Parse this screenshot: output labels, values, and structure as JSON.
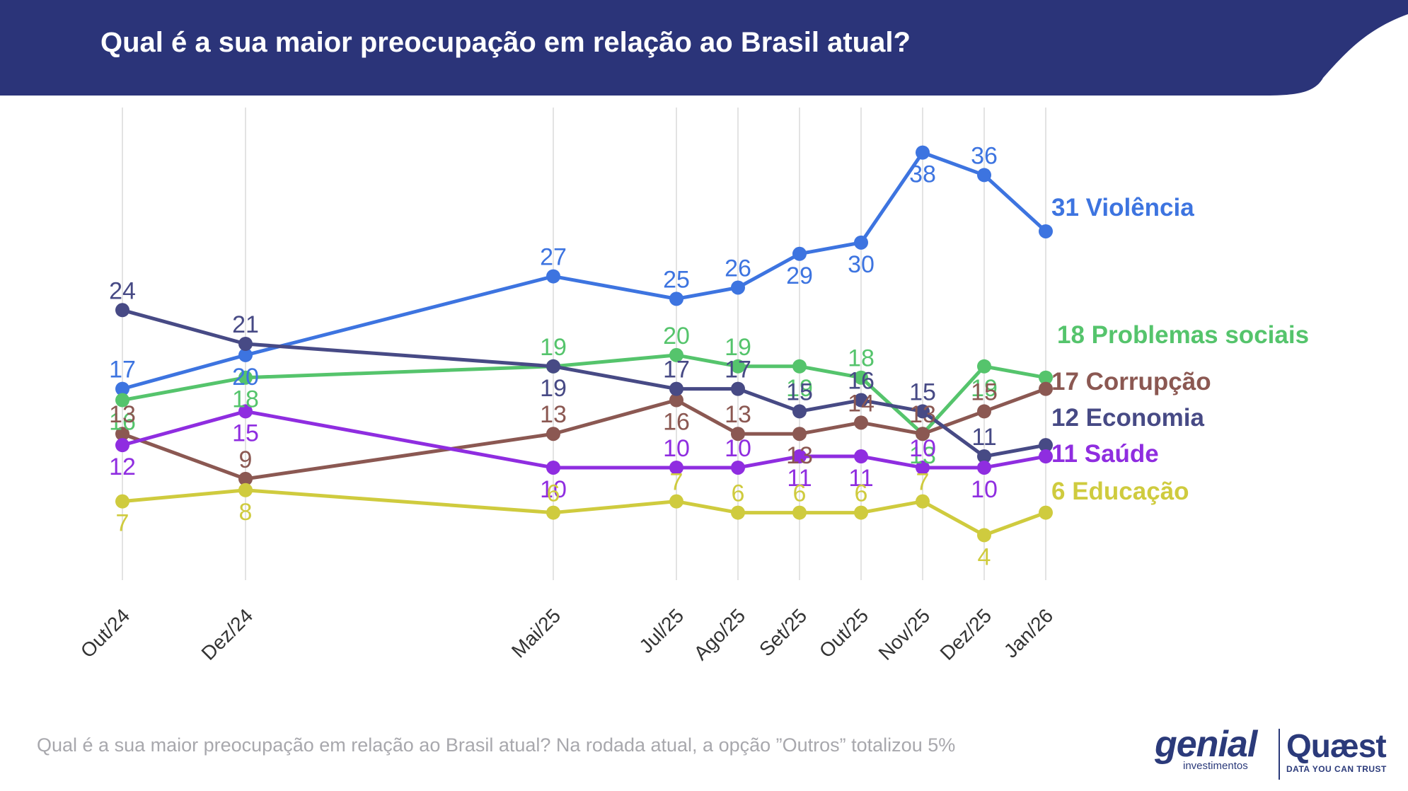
{
  "header": {
    "title": "Qual é a sua maior preocupação em relação ao Brasil atual?",
    "background_color": "#2b3479"
  },
  "footer": {
    "note": "Qual é a sua maior preocupação em relação ao Brasil atual? Na rodada atual, a opção ”Outros” totalizou 5%"
  },
  "logos": {
    "genial": {
      "name": "genial",
      "sub": "investimentos"
    },
    "quaest": {
      "name": "Quæst",
      "sub": "DATA YOU CAN TRUST"
    }
  },
  "chart_data": {
    "type": "line",
    "title": "Qual é a sua maior preocupação em relação ao Brasil atual?",
    "xlabel": "",
    "ylabel": "",
    "ylim": [
      0,
      42
    ],
    "grid": "vertical",
    "categories": [
      "Out/24",
      "Dez/24",
      "Mai/25",
      "Jul/25",
      "Ago/25",
      "Set/25",
      "Out/25",
      "Nov/25",
      "Dez/25",
      "Jan/26"
    ],
    "category_months": [
      0,
      2,
      7,
      9,
      10,
      11,
      12,
      13,
      14,
      15
    ],
    "series": [
      {
        "name": "Violência",
        "end_label": "31 Violência",
        "color": "#3d74e0",
        "values": [
          17,
          20,
          27,
          25,
          26,
          29,
          30,
          38,
          36,
          31
        ],
        "label_positions": [
          "above",
          "below",
          "above",
          "above",
          "above",
          "below",
          "below",
          "below",
          "above",
          "none"
        ]
      },
      {
        "name": "Problemas sociais",
        "end_label": "18 Problemas sociais",
        "color": "#55c46c",
        "values": [
          16,
          18,
          19,
          20,
          19,
          19,
          18,
          13,
          19,
          18
        ],
        "label_positions": [
          "below",
          "below",
          "above",
          "above",
          "above",
          "below",
          "above",
          "below",
          "below",
          "none"
        ]
      },
      {
        "name": "Corrupção",
        "end_label": "17 Corrupção",
        "color": "#8b5852",
        "values": [
          13,
          9,
          13,
          16,
          13,
          13,
          14,
          13,
          15,
          17
        ],
        "label_positions": [
          "above",
          "above",
          "above",
          "below",
          "above",
          "below",
          "above",
          "above",
          "above",
          "none"
        ]
      },
      {
        "name": "Economia",
        "end_label": "12 Economia",
        "color": "#474a85",
        "values": [
          24,
          21,
          19,
          17,
          17,
          15,
          16,
          15,
          11,
          12
        ],
        "label_positions": [
          "above",
          "above",
          "below",
          "above",
          "above",
          "above",
          "above",
          "above",
          "above",
          "none"
        ]
      },
      {
        "name": "Saúde",
        "end_label": "11 Saúde",
        "color": "#8f2de0",
        "values": [
          12,
          15,
          10,
          10,
          10,
          11,
          11,
          10,
          10,
          11
        ],
        "label_positions": [
          "below",
          "below",
          "below",
          "above",
          "above",
          "below",
          "below",
          "above",
          "below",
          "none"
        ]
      },
      {
        "name": "Educação",
        "end_label": "6 Educação",
        "color": "#cfcb3e",
        "values": [
          7,
          8,
          6,
          7,
          6,
          6,
          6,
          7,
          4,
          6
        ],
        "label_positions": [
          "below",
          "below",
          "above",
          "above",
          "above",
          "above",
          "above",
          "above",
          "below",
          "none"
        ]
      }
    ]
  }
}
